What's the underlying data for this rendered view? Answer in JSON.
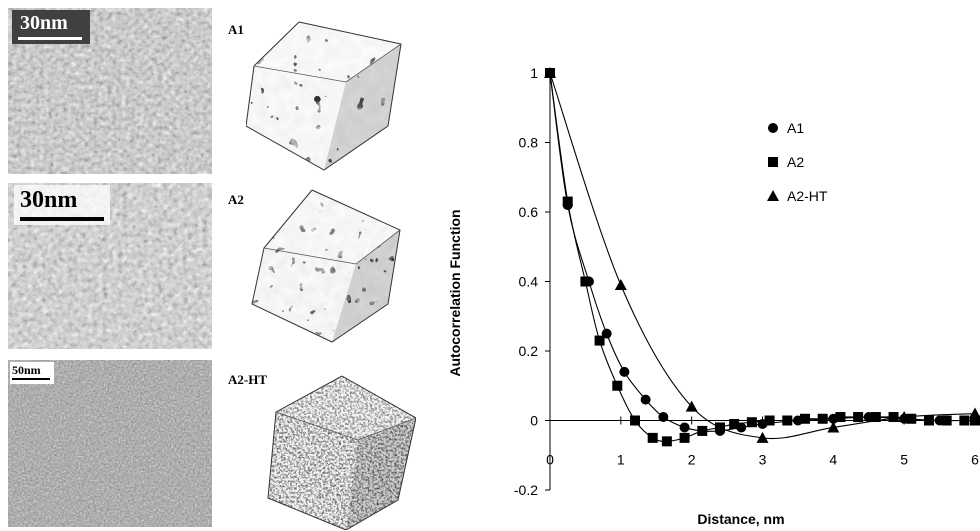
{
  "panels": [
    {
      "label": "A1",
      "scalebar": "30nm"
    },
    {
      "label": "A2",
      "scalebar": "30nm"
    },
    {
      "label": "A2-HT",
      "scalebar": "50nm"
    }
  ],
  "chart_data": {
    "type": "scatter",
    "title": "",
    "xlabel": "Distance, nm",
    "ylabel": "Autocorrelation Function",
    "xlim": [
      0,
      6
    ],
    "ylim": [
      -0.2,
      1
    ],
    "xticks": [
      "0",
      "1",
      "2",
      "3",
      "4",
      "5",
      "6"
    ],
    "yticks": [
      "-0.2",
      "0",
      "0.2",
      "0.4",
      "0.6",
      "0.8",
      "1"
    ],
    "legend_position": "top-right",
    "series": [
      {
        "name": "A1",
        "marker": "circle",
        "x": [
          0,
          0.25,
          0.55,
          0.8,
          1.05,
          1.35,
          1.6,
          1.9,
          2.15,
          2.4,
          2.7,
          3.0,
          3.5,
          4.0,
          4.5,
          5.0,
          5.5,
          6.0
        ],
        "y": [
          1.0,
          0.62,
          0.4,
          0.25,
          0.14,
          0.06,
          0.01,
          -0.02,
          -0.03,
          -0.03,
          -0.02,
          -0.01,
          0.0,
          0.005,
          0.01,
          0.005,
          0.0,
          0.0
        ]
      },
      {
        "name": "A2",
        "marker": "square",
        "x": [
          0,
          0.25,
          0.5,
          0.7,
          0.95,
          1.2,
          1.45,
          1.65,
          1.9,
          2.15,
          2.4,
          2.6,
          2.85,
          3.1,
          3.35,
          3.6,
          3.85,
          4.1,
          4.35,
          4.6,
          4.85,
          5.1,
          5.35,
          5.6,
          5.85,
          6.0
        ],
        "y": [
          1.0,
          0.63,
          0.4,
          0.23,
          0.1,
          0.0,
          -0.05,
          -0.06,
          -0.05,
          -0.03,
          -0.02,
          -0.01,
          -0.005,
          0.0,
          0.0,
          0.005,
          0.005,
          0.01,
          0.01,
          0.01,
          0.01,
          0.005,
          0.0,
          0.0,
          0.0,
          0.0
        ]
      },
      {
        "name": "A2-HT",
        "marker": "triangle",
        "x": [
          0,
          1.0,
          2.0,
          3.0,
          4.0,
          5.0,
          6.0
        ],
        "y": [
          1.0,
          0.39,
          0.04,
          -0.05,
          -0.02,
          0.01,
          0.02
        ]
      }
    ]
  }
}
